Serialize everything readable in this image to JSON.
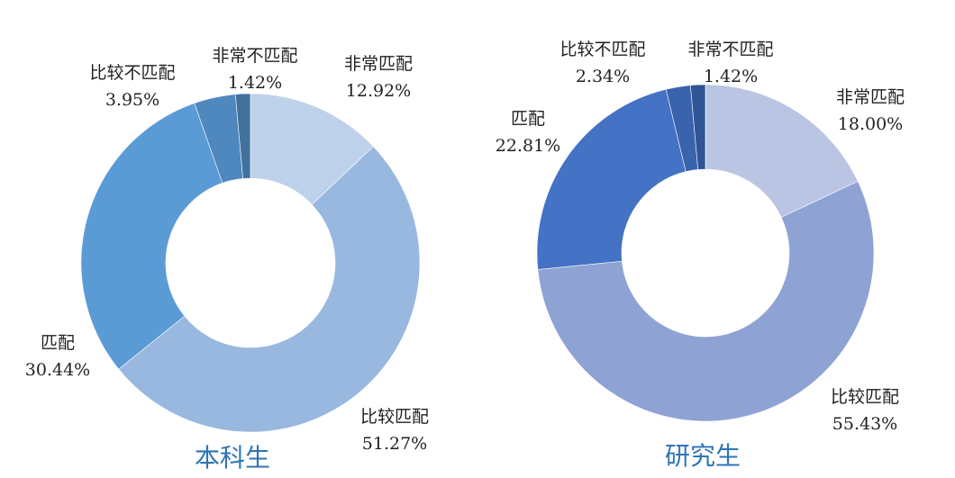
{
  "chart_data": [
    {
      "type": "pie",
      "variant": "donut",
      "title": "本科生",
      "categories": [
        "非常匹配",
        "比较匹配",
        "匹配",
        "比较不匹配",
        "非常不匹配"
      ],
      "values": [
        12.92,
        51.27,
        30.44,
        3.95,
        1.42
      ],
      "value_labels": [
        "12.92%",
        "51.27%",
        "30.44%",
        "3.95%",
        "1.42%"
      ],
      "colors": [
        "#bdd1eb",
        "#99b8e0",
        "#5b9bd5",
        "#4f88bf",
        "#41719c"
      ],
      "start_angle": "12 o'clock, clockwise",
      "legend": "none (data labels outside)"
    },
    {
      "type": "pie",
      "variant": "donut",
      "title": "研究生",
      "categories": [
        "非常匹配",
        "比较匹配",
        "匹配",
        "比较不匹配",
        "非常不匹配"
      ],
      "values": [
        18.0,
        55.43,
        22.81,
        2.34,
        1.42
      ],
      "value_labels": [
        "18.00%",
        "55.43%",
        "22.81%",
        "2.34%",
        "1.42%"
      ],
      "colors": [
        "#bac5e3",
        "#8fa2d4",
        "#4472c4",
        "#3a63ad",
        "#2f5597"
      ],
      "start_angle": "12 o'clock, clockwise",
      "legend": "none (data labels outside)"
    }
  ],
  "left": {
    "title": "本科生",
    "labels": [
      {
        "name": "非常匹配",
        "value": "12.92%"
      },
      {
        "name": "比较匹配",
        "value": "51.27%"
      },
      {
        "name": "匹配",
        "value": "30.44%"
      },
      {
        "name": "比较不匹配",
        "value": "3.95%"
      },
      {
        "name": "非常不匹配",
        "value": "1.42%"
      }
    ]
  },
  "right": {
    "title": "研究生",
    "labels": [
      {
        "name": "非常匹配",
        "value": "18.00%"
      },
      {
        "name": "比较匹配",
        "value": "55.43%"
      },
      {
        "name": "匹配",
        "value": "22.81%"
      },
      {
        "name": "比较不匹配",
        "value": "2.34%"
      },
      {
        "name": "非常不匹配",
        "value": "1.42%"
      }
    ]
  }
}
